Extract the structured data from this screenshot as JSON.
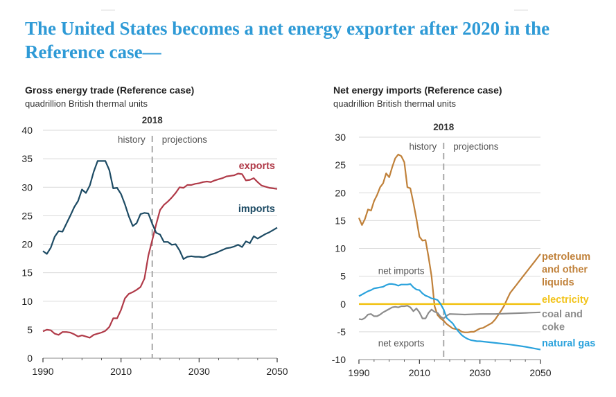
{
  "slide": {
    "headline": "The United States becomes a net energy exporter after 2020 in the Reference case—"
  },
  "colors": {
    "headline": "#2e9ad6",
    "exports": "#b03a48",
    "imports": "#1d4b64",
    "petroleum": "#c0813a",
    "electricity": "#f2c318",
    "coal": "#8c8c8c",
    "natural_gas": "#2aa2dc",
    "grid": "#d9d9d9",
    "divider": "#a8a8a8"
  },
  "chart_data": [
    {
      "type": "line",
      "title": "Gross energy trade (Reference case)",
      "subtitle": "quadrillion British thermal units",
      "xlim": [
        1990,
        2050
      ],
      "ylim": [
        0,
        40
      ],
      "xticks": [
        1990,
        2010,
        2030,
        2050
      ],
      "yticks": [
        0,
        5,
        10,
        15,
        20,
        25,
        30,
        35,
        40
      ],
      "grid": "horizontal",
      "divider": {
        "x": 2018,
        "label": "2018",
        "left_label": "history",
        "right_label": "projections"
      },
      "series": [
        {
          "name": "exports",
          "x": [
            1990,
            1991,
            1992,
            1993,
            1994,
            1995,
            1996,
            1997,
            1998,
            1999,
            2000,
            2001,
            2002,
            2003,
            2004,
            2005,
            2006,
            2007,
            2008,
            2009,
            2010,
            2011,
            2012,
            2013,
            2014,
            2015,
            2016,
            2017,
            2018,
            2019,
            2020,
            2021,
            2022,
            2023,
            2024,
            2025,
            2026,
            2027,
            2028,
            2029,
            2030,
            2031,
            2032,
            2033,
            2034,
            2035,
            2036,
            2037,
            2038,
            2039,
            2040,
            2041,
            2042,
            2043,
            2044,
            2045,
            2046,
            2047,
            2048,
            2049,
            2050
          ],
          "values": [
            4.7,
            5.0,
            4.9,
            4.3,
            4.1,
            4.6,
            4.6,
            4.5,
            4.2,
            3.8,
            4.0,
            3.8,
            3.6,
            4.1,
            4.3,
            4.5,
            4.8,
            5.5,
            7.0,
            7.0,
            8.5,
            10.5,
            11.3,
            11.6,
            12.0,
            12.5,
            14.0,
            18.0,
            20.7,
            23.5,
            26.0,
            26.9,
            27.5,
            28.2,
            29.0,
            30.0,
            29.9,
            30.4,
            30.4,
            30.6,
            30.7,
            30.9,
            31.0,
            30.9,
            31.2,
            31.4,
            31.6,
            31.9,
            32.0,
            32.1,
            32.4,
            32.3,
            31.2,
            31.3,
            31.6,
            30.9,
            30.3,
            30.1,
            29.9,
            29.8,
            29.7
          ],
          "label_at": {
            "x": 2040,
            "y": 34.2
          }
        },
        {
          "name": "imports",
          "x": [
            1990,
            1991,
            1992,
            1993,
            1994,
            1995,
            1996,
            1997,
            1998,
            1999,
            2000,
            2001,
            2002,
            2003,
            2004,
            2005,
            2006,
            2007,
            2008,
            2009,
            2010,
            2011,
            2012,
            2013,
            2014,
            2015,
            2016,
            2017,
            2018,
            2019,
            2020,
            2021,
            2022,
            2023,
            2024,
            2025,
            2026,
            2027,
            2028,
            2029,
            2030,
            2031,
            2032,
            2033,
            2034,
            2035,
            2036,
            2037,
            2038,
            2039,
            2040,
            2041,
            2042,
            2043,
            2044,
            2045,
            2046,
            2047,
            2048,
            2049,
            2050
          ],
          "values": [
            18.8,
            18.3,
            19.4,
            21.3,
            22.3,
            22.2,
            23.6,
            25.0,
            26.5,
            27.6,
            29.6,
            29.0,
            30.3,
            32.7,
            34.6,
            34.6,
            34.6,
            33.0,
            29.8,
            29.9,
            28.8,
            27.0,
            24.9,
            23.2,
            23.7,
            25.3,
            25.5,
            25.4,
            23.6,
            22.0,
            21.7,
            20.4,
            20.4,
            19.9,
            20.0,
            18.9,
            17.4,
            17.8,
            17.9,
            17.8,
            17.8,
            17.7,
            17.9,
            18.2,
            18.4,
            18.7,
            19.0,
            19.3,
            19.4,
            19.6,
            19.9,
            19.5,
            20.5,
            20.2,
            21.4,
            21.0,
            21.4,
            21.8,
            22.1,
            22.5,
            22.9
          ],
          "label_at": {
            "x": 2040,
            "y": 25.7
          }
        }
      ]
    },
    {
      "type": "line",
      "title": "Net energy imports (Reference case)",
      "subtitle": "quadrillion British thermal units",
      "xlim": [
        1990,
        2050
      ],
      "ylim": [
        -10,
        30
      ],
      "xticks": [
        1990,
        2010,
        2030,
        2050
      ],
      "yticks": [
        -10,
        -5,
        0,
        5,
        10,
        15,
        20,
        25,
        30
      ],
      "grid": "horizontal",
      "divider": {
        "x": 2018,
        "label": "2018",
        "left_label": "history",
        "right_label": "projections"
      },
      "annotations": [
        {
          "text": "net imports",
          "x": 2004,
          "y": 6.0
        },
        {
          "text": "net exports",
          "x": 2004,
          "y": -7.0
        }
      ],
      "series": [
        {
          "name": "petroleum and other liquids",
          "x": [
            1990,
            1991,
            1992,
            1993,
            1994,
            1995,
            1996,
            1997,
            1998,
            1999,
            2000,
            2001,
            2002,
            2003,
            2004,
            2005,
            2006,
            2007,
            2008,
            2009,
            2010,
            2011,
            2012,
            2013,
            2014,
            2015,
            2016,
            2017,
            2018,
            2019,
            2020,
            2021,
            2022,
            2023,
            2024,
            2025,
            2026,
            2027,
            2028,
            2029,
            2030,
            2031,
            2032,
            2033,
            2034,
            2035,
            2036,
            2037,
            2038,
            2039,
            2040,
            2041,
            2042,
            2043,
            2044,
            2045,
            2046,
            2047,
            2048,
            2049,
            2050
          ],
          "values": [
            15.5,
            14.2,
            15.3,
            17.0,
            16.8,
            18.5,
            19.6,
            21.0,
            21.7,
            23.5,
            22.8,
            24.6,
            26.2,
            26.9,
            26.6,
            25.5,
            21.0,
            20.8,
            18.2,
            15.3,
            12.1,
            11.4,
            11.5,
            8.5,
            5.0,
            -0.4,
            -2.0,
            -2.6,
            -3.0,
            -3.6,
            -4.0,
            -4.4,
            -4.5,
            -4.6,
            -5.0,
            -5.1,
            -5.1,
            -5.0,
            -5.0,
            -4.7,
            -4.4,
            -4.3,
            -4.0,
            -3.7,
            -3.4,
            -2.8,
            -2.0,
            -1.2,
            -0.3,
            0.9,
            2.0,
            2.7,
            3.4,
            4.1,
            4.8,
            5.5,
            6.2,
            6.9,
            7.6,
            8.3,
            9.0
          ],
          "label_lines": [
            "petroleum",
            "and other",
            "liquids"
          ]
        },
        {
          "name": "electricity",
          "x": [
            1990,
            2050
          ],
          "values": [
            0.0,
            0.0
          ],
          "label_lines": [
            "electricity"
          ]
        },
        {
          "name": "coal and coke",
          "x": [
            1990,
            1991,
            1992,
            1993,
            1994,
            1995,
            1996,
            1997,
            1998,
            1999,
            2000,
            2001,
            2002,
            2003,
            2004,
            2005,
            2006,
            2007,
            2008,
            2009,
            2010,
            2011,
            2012,
            2013,
            2014,
            2015,
            2016,
            2017,
            2018,
            2019,
            2020,
            2025,
            2030,
            2035,
            2040,
            2045,
            2050
          ],
          "values": [
            -2.7,
            -2.8,
            -2.5,
            -1.9,
            -1.8,
            -2.2,
            -2.2,
            -1.9,
            -1.5,
            -1.2,
            -0.9,
            -0.6,
            -0.5,
            -0.6,
            -0.4,
            -0.4,
            -0.3,
            -0.6,
            -1.3,
            -0.8,
            -1.5,
            -2.6,
            -2.6,
            -1.6,
            -1.0,
            -1.4,
            -1.6,
            -2.3,
            -2.6,
            -2.1,
            -1.8,
            -1.9,
            -1.8,
            -1.8,
            -1.7,
            -1.6,
            -1.5
          ],
          "label_lines": [
            "coal and",
            "coke"
          ]
        },
        {
          "name": "natural gas",
          "x": [
            1990,
            1991,
            1992,
            1993,
            1994,
            1995,
            1996,
            1997,
            1998,
            1999,
            2000,
            2001,
            2002,
            2003,
            2004,
            2005,
            2006,
            2007,
            2008,
            2009,
            2010,
            2011,
            2012,
            2013,
            2014,
            2015,
            2016,
            2017,
            2018,
            2019,
            2020,
            2021,
            2022,
            2023,
            2024,
            2025,
            2026,
            2027,
            2028,
            2029,
            2030,
            2035,
            2040,
            2045,
            2050
          ],
          "values": [
            1.4,
            1.7,
            2.0,
            2.3,
            2.5,
            2.8,
            2.9,
            3.0,
            3.1,
            3.4,
            3.6,
            3.6,
            3.5,
            3.3,
            3.5,
            3.5,
            3.5,
            3.6,
            3.0,
            2.6,
            2.5,
            1.9,
            1.5,
            1.3,
            1.0,
            0.9,
            0.7,
            0.0,
            -1.0,
            -2.5,
            -3.0,
            -3.5,
            -4.3,
            -5.0,
            -5.6,
            -6.0,
            -6.3,
            -6.5,
            -6.6,
            -6.7,
            -6.7,
            -7.0,
            -7.3,
            -7.7,
            -8.2
          ],
          "label_lines": [
            "natural gas"
          ]
        }
      ]
    }
  ]
}
